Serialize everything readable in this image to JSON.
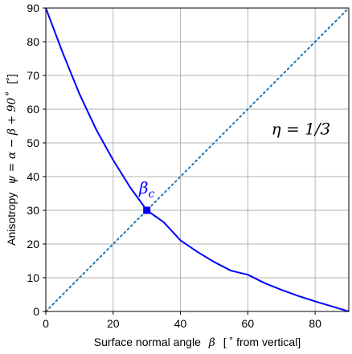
{
  "chart_data": {
    "type": "line",
    "xlabel": {
      "prefix": "Surface normal angle",
      "symbol": "β",
      "suffix": "[ ˚ from vertical]"
    },
    "ylabel": {
      "prefix": "Anisotropy",
      "symbol": "ψ = α − β + 90˚",
      "suffix": "[˚]"
    },
    "xlim": [
      0,
      90
    ],
    "ylim": [
      0,
      90
    ],
    "xticks": [
      0,
      20,
      40,
      60,
      80
    ],
    "yticks": [
      0,
      10,
      20,
      30,
      40,
      50,
      60,
      70,
      80,
      90
    ],
    "grid": true,
    "annotations": {
      "eta": "η = 1/3",
      "beta_c": "β",
      "beta_c_sub": "c"
    },
    "colors": {
      "curve": "#0000ff",
      "diagonal": "#1f77b4",
      "marker": "#0000ff",
      "grid": "#b0b0b0",
      "beta_c_label": "#0000ff"
    },
    "series": [
      {
        "style": "solid",
        "x": [
          0,
          5,
          10,
          15,
          20,
          25,
          30,
          35,
          40,
          45,
          50,
          55,
          60,
          65,
          70,
          75,
          80,
          85,
          90
        ],
        "y": [
          90,
          76.8,
          64.5,
          53.9,
          44.9,
          36.9,
          30,
          26.5,
          21.1,
          17.7,
          14.7,
          12.1,
          10.9,
          8.4,
          6.4,
          4.6,
          3.0,
          1.5,
          0
        ]
      },
      {
        "style": "dotted",
        "x": [
          0,
          90
        ],
        "y": [
          0,
          90
        ]
      }
    ],
    "points": [
      {
        "x": 30,
        "y": 30,
        "marker": "square"
      }
    ]
  }
}
